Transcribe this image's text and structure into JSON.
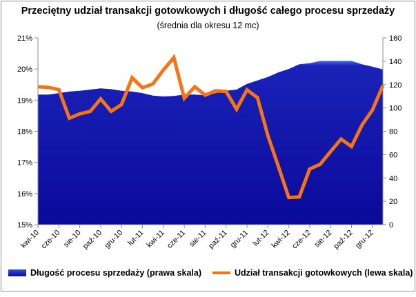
{
  "chart_data": {
    "type": "area+line",
    "title": "Przeciętny udział transakcji gotowkowych i długość całego procesu sprzedaży",
    "subtitle": "(średnia dla okresu 12 mc)",
    "x": [
      "2010-04",
      "2010-05",
      "2010-06",
      "2010-07",
      "2010-08",
      "2010-09",
      "2010-10",
      "2010-11",
      "2010-12",
      "2011-01",
      "2011-02",
      "2011-03",
      "2011-04",
      "2011-05",
      "2011-06",
      "2011-07",
      "2011-08",
      "2011-09",
      "2011-10",
      "2011-11",
      "2011-12",
      "2012-01",
      "2012-02",
      "2012-03",
      "2012-04",
      "2012-05",
      "2012-06",
      "2012-07",
      "2012-08",
      "2012-09",
      "2012-10",
      "2012-11",
      "2012-12",
      "2013-01"
    ],
    "x_tick_labels": [
      "kwi-10",
      "cze-10",
      "sie-10",
      "paź-10",
      "gru-10",
      "lut-11",
      "kwi-11",
      "cze-11",
      "sie-11",
      "paź-11",
      "gru-11",
      "lut-12",
      "kwi-12",
      "cze-12",
      "sie-12",
      "paź-12",
      "gru-12"
    ],
    "left_axis": {
      "ticks": [
        "15%",
        "16%",
        "17%",
        "18%",
        "19%",
        "20%",
        "21%"
      ],
      "ylim": [
        15,
        21
      ],
      "unit": "%"
    },
    "right_axis": {
      "ticks": [
        "0",
        "20",
        "40",
        "60",
        "80",
        "100",
        "120",
        "140",
        "160"
      ],
      "ylim": [
        0,
        160
      ]
    },
    "series": [
      {
        "name": "Długość procesu sprzedaży (prawa skala)",
        "type": "area",
        "axis": "right",
        "color": "#0a0a9a",
        "values": [
          111.4,
          111.4,
          112.7,
          114.0,
          114.7,
          115.7,
          116.7,
          116.1,
          114.7,
          114.1,
          112.7,
          110.6,
          109.8,
          110.2,
          111.4,
          111.4,
          110.8,
          112.7,
          114.7,
          115.7,
          120.6,
          123.6,
          126.5,
          130.5,
          133.4,
          137.4,
          138.3,
          140.3,
          140.3,
          140.3,
          140.3,
          137.4,
          135.4,
          133.0
        ]
      },
      {
        "name": "Udział transakcji gotowkowych (lewa skala)",
        "type": "line",
        "axis": "left",
        "color": "#f47416",
        "values": [
          19.43,
          19.41,
          19.34,
          18.42,
          18.56,
          18.64,
          19.04,
          18.64,
          18.86,
          19.72,
          19.4,
          19.52,
          19.97,
          20.37,
          19.06,
          19.43,
          19.16,
          19.3,
          19.28,
          18.71,
          19.33,
          19.08,
          17.86,
          16.87,
          15.87,
          15.89,
          16.79,
          16.94,
          17.35,
          17.75,
          17.51,
          18.2,
          18.68,
          19.47
        ]
      }
    ],
    "grid": false,
    "legend_placement": "bottom"
  }
}
